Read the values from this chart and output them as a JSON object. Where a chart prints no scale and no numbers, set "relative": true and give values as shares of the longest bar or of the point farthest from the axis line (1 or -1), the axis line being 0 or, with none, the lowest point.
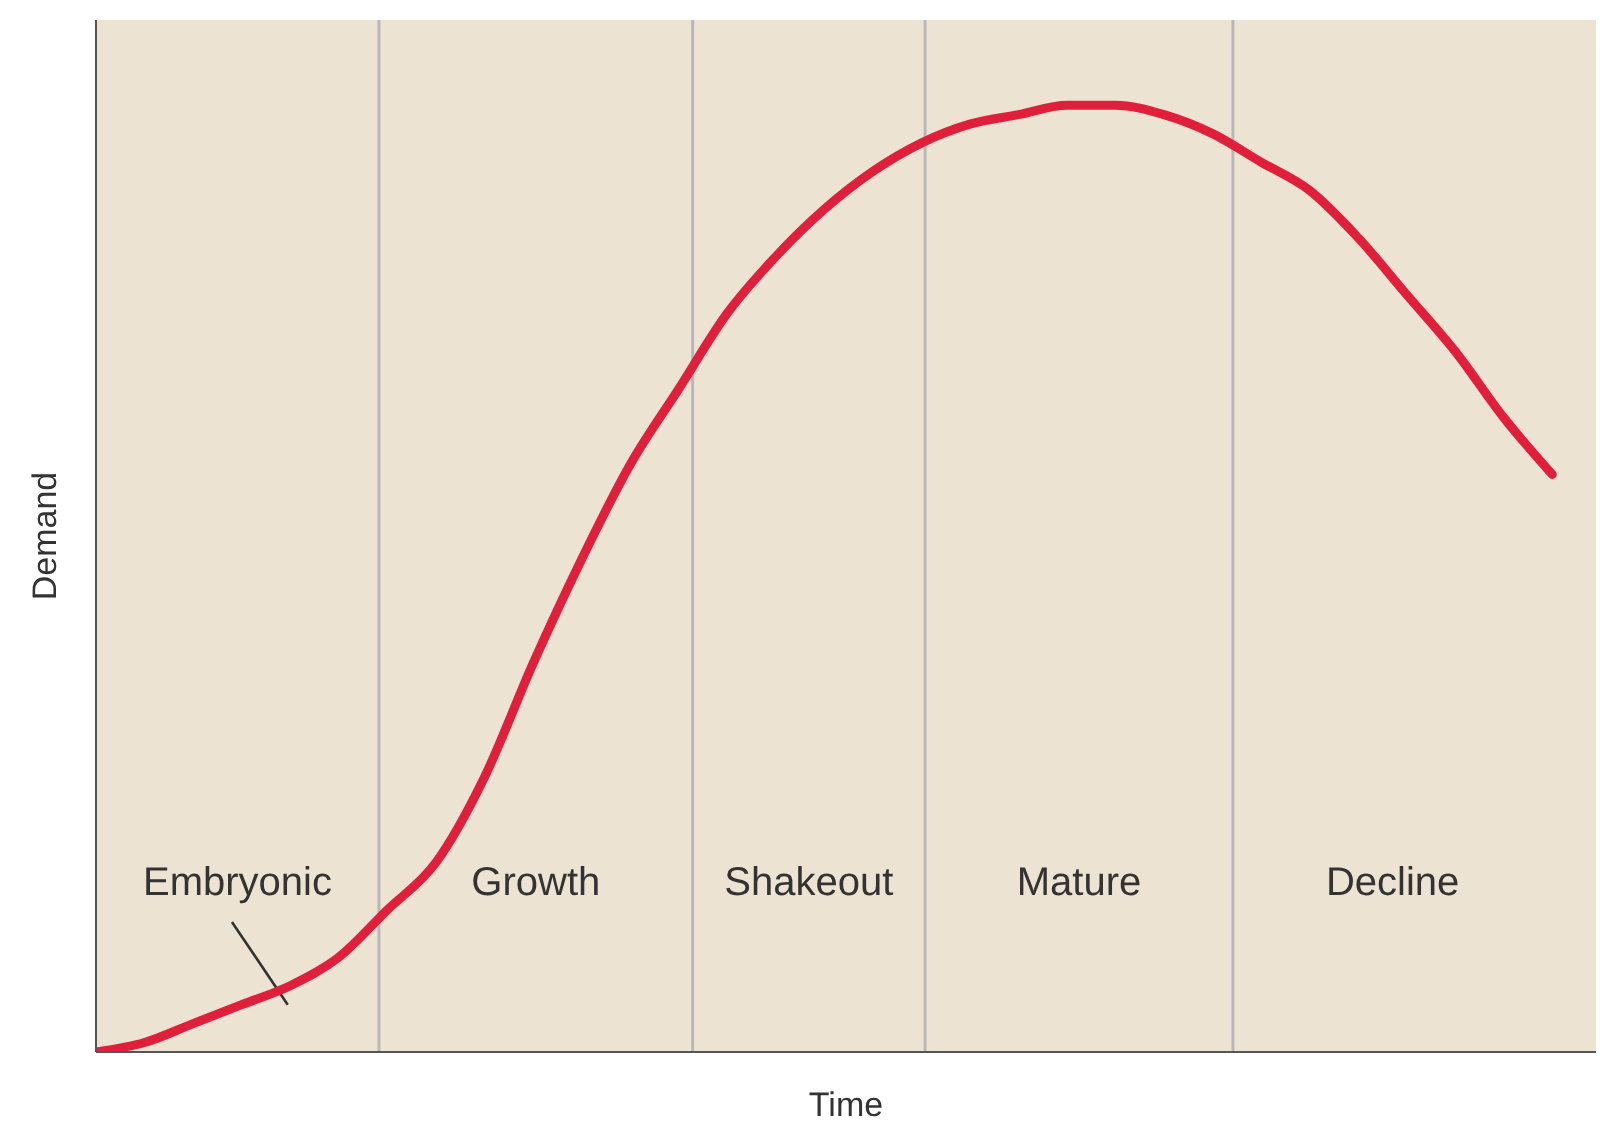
{
  "chart_data": {
    "type": "line",
    "relative": true,
    "xlabel": "Time",
    "ylabel": "Demand",
    "categories": [
      null,
      null,
      null,
      null,
      null,
      null,
      null,
      null,
      null,
      null,
      null,
      null,
      null,
      null,
      null,
      null,
      null,
      null,
      null,
      null,
      null,
      null,
      null,
      null,
      null,
      null,
      null,
      null,
      null,
      null,
      null
    ],
    "series": [
      {
        "color": "#e0203a",
        "values": [
          0,
          0.01,
          0.03,
          0.05,
          0.07,
          0.1,
          0.15,
          0.2,
          0.29,
          0.41,
          0.52,
          0.62,
          0.7,
          0.78,
          0.84,
          0.89,
          0.93,
          0.96,
          0.98,
          0.99,
          1,
          1,
          0.99,
          0.97,
          0.94,
          0.91,
          0.86,
          0.8,
          0.74,
          0.67,
          0.61
        ]
      }
    ],
    "annotations": [
      "Embryonic",
      "Growth",
      "Shakeout",
      "Mature",
      "Decline"
    ],
    "grid": false,
    "legend": false,
    "marker": "none",
    "line_style": "solid"
  }
}
